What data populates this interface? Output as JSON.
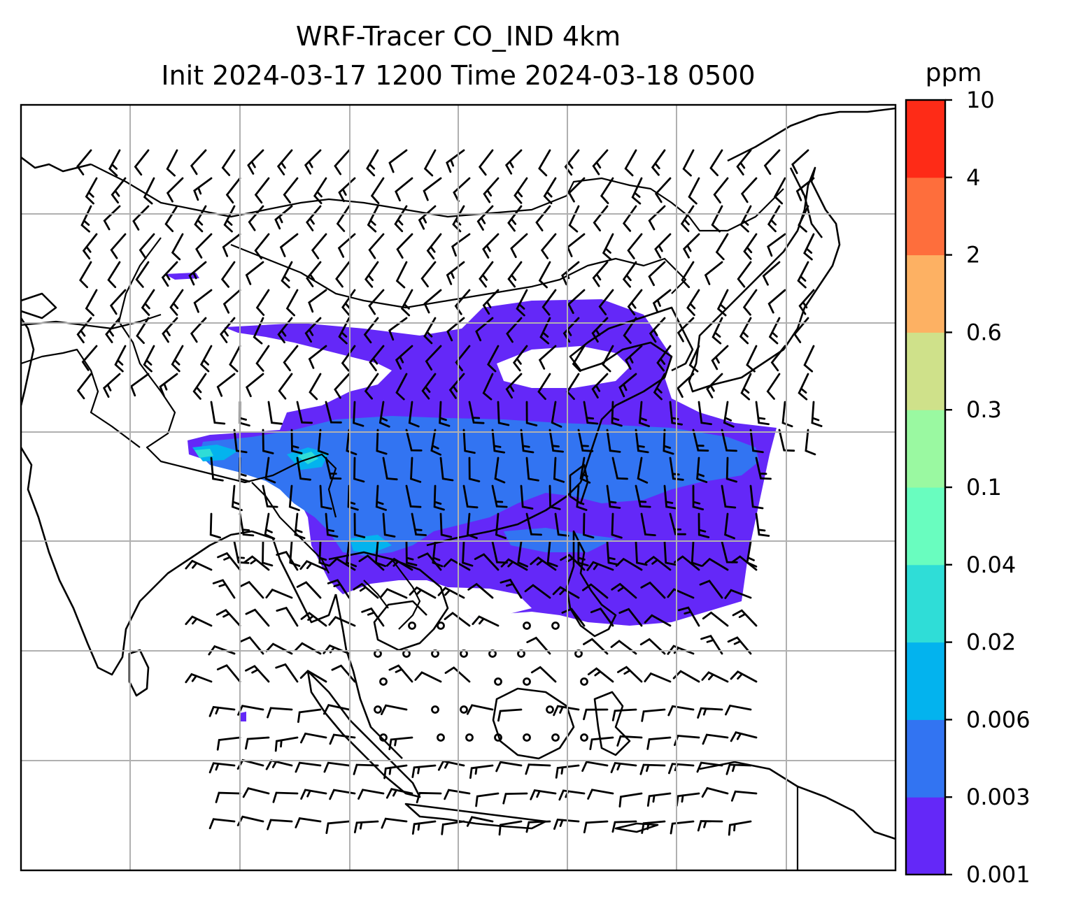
{
  "title": {
    "line1": "WRF-Tracer CO_IND 4km",
    "line2": "Init 2024-03-17 1200 Time 2024-03-18 0500"
  },
  "colorbar": {
    "unit": "ppm",
    "levels": [
      "0.001",
      "0.003",
      "0.006",
      "0.02",
      "0.04",
      "0.1",
      "0.3",
      "0.6",
      "2",
      "4",
      "10"
    ],
    "colors": [
      "#6428f8",
      "#3274f2",
      "#03b3ee",
      "#2fddd7",
      "#69fdbf",
      "#9af9a1",
      "#cfe18a",
      "#fdb163",
      "#fe6e3c",
      "#fe2b17"
    ]
  },
  "map": {
    "field": "CO_IND tracer concentration",
    "overlays": [
      "coastlines",
      "country-borders",
      "wind-barbs",
      "gridlines"
    ]
  }
}
